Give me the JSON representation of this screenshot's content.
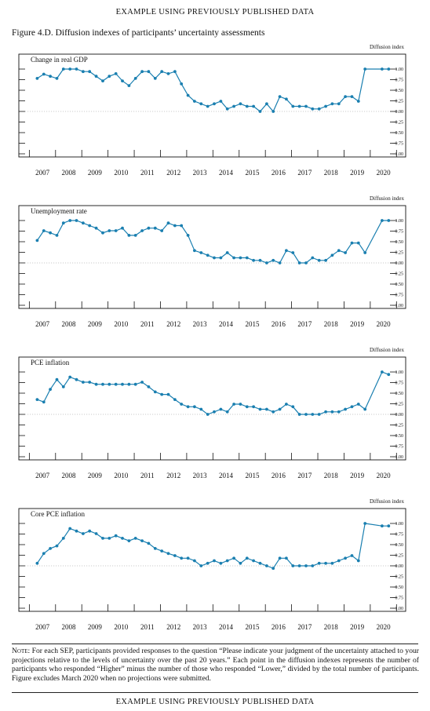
{
  "header": "EXAMPLE USING PREVIOUSLY PUBLISHED DATA",
  "footer": "EXAMPLE USING PREVIOUSLY PUBLISHED DATA",
  "figure_title": "Figure 4.D. Diffusion indexes of participants’ uncertainty assessments",
  "note_label": "Note:",
  "note_text": "For each SEP, participants provided responses to the question “Please indicate your judgment of the uncertainty attached to your projections relative to the levels of uncertainty over the past 20 years.” Each point in the diffusion indexes represents the number of participants who responded “Higher” minus the number of those who responded “Lower,” divided by the total number of participants. Figure excludes March 2020 when no projections were submitted.",
  "colors": {
    "series": "#1a7fb0",
    "baseline": "#bbbbbb",
    "ink": "#111111"
  },
  "chart_data": [
    {
      "type": "line",
      "title": "Change in real GDP",
      "ylabel": "Diffusion index",
      "ylim": [
        -1.0,
        1.0
      ],
      "yticks": [
        "1.00",
        "0.75",
        "0.50",
        "0.25",
        "0.00",
        "−0.25",
        "−0.50",
        "−0.75",
        "−1.00"
      ],
      "xticks": [
        "2007",
        "2008",
        "2009",
        "2010",
        "2011",
        "2012",
        "2013",
        "2014",
        "2015",
        "2016",
        "2017",
        "2018",
        "2019",
        "2020"
      ],
      "x": [
        2007.3,
        2007.55,
        2007.8,
        2008.05,
        2008.3,
        2008.55,
        2008.8,
        2009.05,
        2009.3,
        2009.55,
        2009.8,
        2010.05,
        2010.3,
        2010.55,
        2010.8,
        2011.05,
        2011.3,
        2011.55,
        2011.8,
        2012.05,
        2012.3,
        2012.55,
        2012.8,
        2013.05,
        2013.3,
        2013.55,
        2013.8,
        2014.05,
        2014.3,
        2014.55,
        2014.8,
        2015.05,
        2015.3,
        2015.55,
        2015.8,
        2016.05,
        2016.3,
        2016.55,
        2016.8,
        2017.05,
        2017.3,
        2017.55,
        2017.8,
        2018.05,
        2018.3,
        2018.55,
        2018.8,
        2019.05,
        2019.3,
        2019.55,
        2019.8,
        2020.45,
        2020.7
      ],
      "values": [
        0.78,
        0.88,
        0.83,
        0.78,
        1.0,
        1.0,
        1.0,
        0.94,
        0.94,
        0.83,
        0.72,
        0.83,
        0.89,
        0.72,
        0.61,
        0.78,
        0.94,
        0.94,
        0.78,
        0.94,
        0.89,
        0.94,
        0.65,
        0.38,
        0.24,
        0.18,
        0.12,
        0.18,
        0.24,
        0.06,
        0.12,
        0.18,
        0.12,
        0.12,
        0.0,
        0.18,
        0.0,
        0.35,
        0.29,
        0.12,
        0.12,
        0.12,
        0.06,
        0.06,
        0.12,
        0.18,
        0.18,
        0.35,
        0.35,
        0.24,
        1.0,
        1.0,
        1.0
      ]
    },
    {
      "type": "line",
      "title": "Unemployment rate",
      "ylabel": "Diffusion index",
      "ylim": [
        -1.0,
        1.0
      ],
      "yticks": [
        "1.00",
        "0.75",
        "0.50",
        "0.25",
        "0.00",
        "−0.25",
        "−0.50",
        "−0.75",
        "−1.00"
      ],
      "xticks": [
        "2007",
        "2008",
        "2009",
        "2010",
        "2011",
        "2012",
        "2013",
        "2014",
        "2015",
        "2016",
        "2017",
        "2018",
        "2019",
        "2020"
      ],
      "x": [
        2007.3,
        2007.55,
        2007.8,
        2008.05,
        2008.3,
        2008.55,
        2008.8,
        2009.05,
        2009.3,
        2009.55,
        2009.8,
        2010.05,
        2010.3,
        2010.55,
        2010.8,
        2011.05,
        2011.3,
        2011.55,
        2011.8,
        2012.05,
        2012.3,
        2012.55,
        2012.8,
        2013.05,
        2013.3,
        2013.55,
        2013.8,
        2014.05,
        2014.3,
        2014.55,
        2014.8,
        2015.05,
        2015.3,
        2015.55,
        2015.8,
        2016.05,
        2016.3,
        2016.55,
        2016.8,
        2017.05,
        2017.3,
        2017.55,
        2017.8,
        2018.05,
        2018.3,
        2018.55,
        2018.8,
        2019.05,
        2019.3,
        2019.55,
        2019.8,
        2020.45,
        2020.7
      ],
      "values": [
        0.53,
        0.76,
        0.71,
        0.65,
        0.94,
        1.0,
        1.0,
        0.94,
        0.88,
        0.82,
        0.71,
        0.76,
        0.76,
        0.82,
        0.65,
        0.65,
        0.76,
        0.82,
        0.82,
        0.76,
        0.94,
        0.88,
        0.88,
        0.65,
        0.29,
        0.24,
        0.18,
        0.12,
        0.12,
        0.24,
        0.12,
        0.12,
        0.12,
        0.06,
        0.06,
        0.0,
        0.06,
        0.0,
        0.29,
        0.24,
        0.0,
        0.0,
        0.12,
        0.06,
        0.06,
        0.18,
        0.29,
        0.24,
        0.47,
        0.47,
        0.24,
        1.0,
        1.0
      ]
    },
    {
      "type": "line",
      "title": "PCE inflation",
      "ylabel": "Diffusion index",
      "ylim": [
        -1.0,
        1.0
      ],
      "yticks": [
        "1.00",
        "0.75",
        "0.50",
        "0.25",
        "0.00",
        "−0.25",
        "−0.50",
        "−0.75",
        "−1.00"
      ],
      "xticks": [
        "2007",
        "2008",
        "2009",
        "2010",
        "2011",
        "2012",
        "2013",
        "2014",
        "2015",
        "2016",
        "2017",
        "2018",
        "2019",
        "2020"
      ],
      "x": [
        2007.3,
        2007.55,
        2007.8,
        2008.05,
        2008.3,
        2008.55,
        2008.8,
        2009.05,
        2009.3,
        2009.55,
        2009.8,
        2010.05,
        2010.3,
        2010.55,
        2010.8,
        2011.05,
        2011.3,
        2011.55,
        2011.8,
        2012.05,
        2012.3,
        2012.55,
        2012.8,
        2013.05,
        2013.3,
        2013.55,
        2013.8,
        2014.05,
        2014.3,
        2014.55,
        2014.8,
        2015.05,
        2015.3,
        2015.55,
        2015.8,
        2016.05,
        2016.3,
        2016.55,
        2016.8,
        2017.05,
        2017.3,
        2017.55,
        2017.8,
        2018.05,
        2018.3,
        2018.55,
        2018.8,
        2019.05,
        2019.3,
        2019.55,
        2019.8,
        2020.45,
        2020.7
      ],
      "values": [
        0.35,
        0.29,
        0.59,
        0.82,
        0.65,
        0.88,
        0.82,
        0.76,
        0.76,
        0.71,
        0.71,
        0.71,
        0.71,
        0.71,
        0.71,
        0.71,
        0.76,
        0.65,
        0.53,
        0.47,
        0.47,
        0.35,
        0.24,
        0.18,
        0.18,
        0.12,
        0.0,
        0.06,
        0.12,
        0.06,
        0.24,
        0.24,
        0.18,
        0.18,
        0.12,
        0.12,
        0.06,
        0.12,
        0.24,
        0.18,
        0.0,
        0.0,
        0.0,
        0.0,
        0.06,
        0.06,
        0.06,
        0.12,
        0.18,
        0.24,
        0.12,
        1.0,
        0.94
      ]
    },
    {
      "type": "line",
      "title": "Core PCE inflation",
      "ylabel": "Diffusion index",
      "ylim": [
        -1.0,
        1.0
      ],
      "yticks": [
        "1.00",
        "0.75",
        "0.50",
        "0.25",
        "0.00",
        "−0.25",
        "−0.50",
        "−0.75",
        "−1.00"
      ],
      "xticks": [
        "2007",
        "2008",
        "2009",
        "2010",
        "2011",
        "2012",
        "2013",
        "2014",
        "2015",
        "2016",
        "2017",
        "2018",
        "2019",
        "2020"
      ],
      "x": [
        2007.3,
        2007.55,
        2007.8,
        2008.05,
        2008.3,
        2008.55,
        2008.8,
        2009.05,
        2009.3,
        2009.55,
        2009.8,
        2010.05,
        2010.3,
        2010.55,
        2010.8,
        2011.05,
        2011.3,
        2011.55,
        2011.8,
        2012.05,
        2012.3,
        2012.55,
        2012.8,
        2013.05,
        2013.3,
        2013.55,
        2013.8,
        2014.05,
        2014.3,
        2014.55,
        2014.8,
        2015.05,
        2015.3,
        2015.55,
        2015.8,
        2016.05,
        2016.3,
        2016.55,
        2016.8,
        2017.05,
        2017.3,
        2017.55,
        2017.8,
        2018.05,
        2018.3,
        2018.55,
        2018.8,
        2019.05,
        2019.3,
        2019.55,
        2019.8,
        2020.45,
        2020.7
      ],
      "values": [
        0.06,
        0.29,
        0.41,
        0.47,
        0.65,
        0.88,
        0.82,
        0.76,
        0.82,
        0.76,
        0.65,
        0.65,
        0.71,
        0.65,
        0.59,
        0.65,
        0.59,
        0.53,
        0.41,
        0.35,
        0.29,
        0.24,
        0.18,
        0.18,
        0.12,
        0.0,
        0.06,
        0.12,
        0.06,
        0.12,
        0.18,
        0.06,
        0.18,
        0.12,
        0.06,
        0.0,
        -0.06,
        0.18,
        0.18,
        0.0,
        0.0,
        0.0,
        0.0,
        0.06,
        0.06,
        0.06,
        0.12,
        0.18,
        0.24,
        0.12,
        1.0,
        0.94,
        0.94
      ]
    }
  ]
}
